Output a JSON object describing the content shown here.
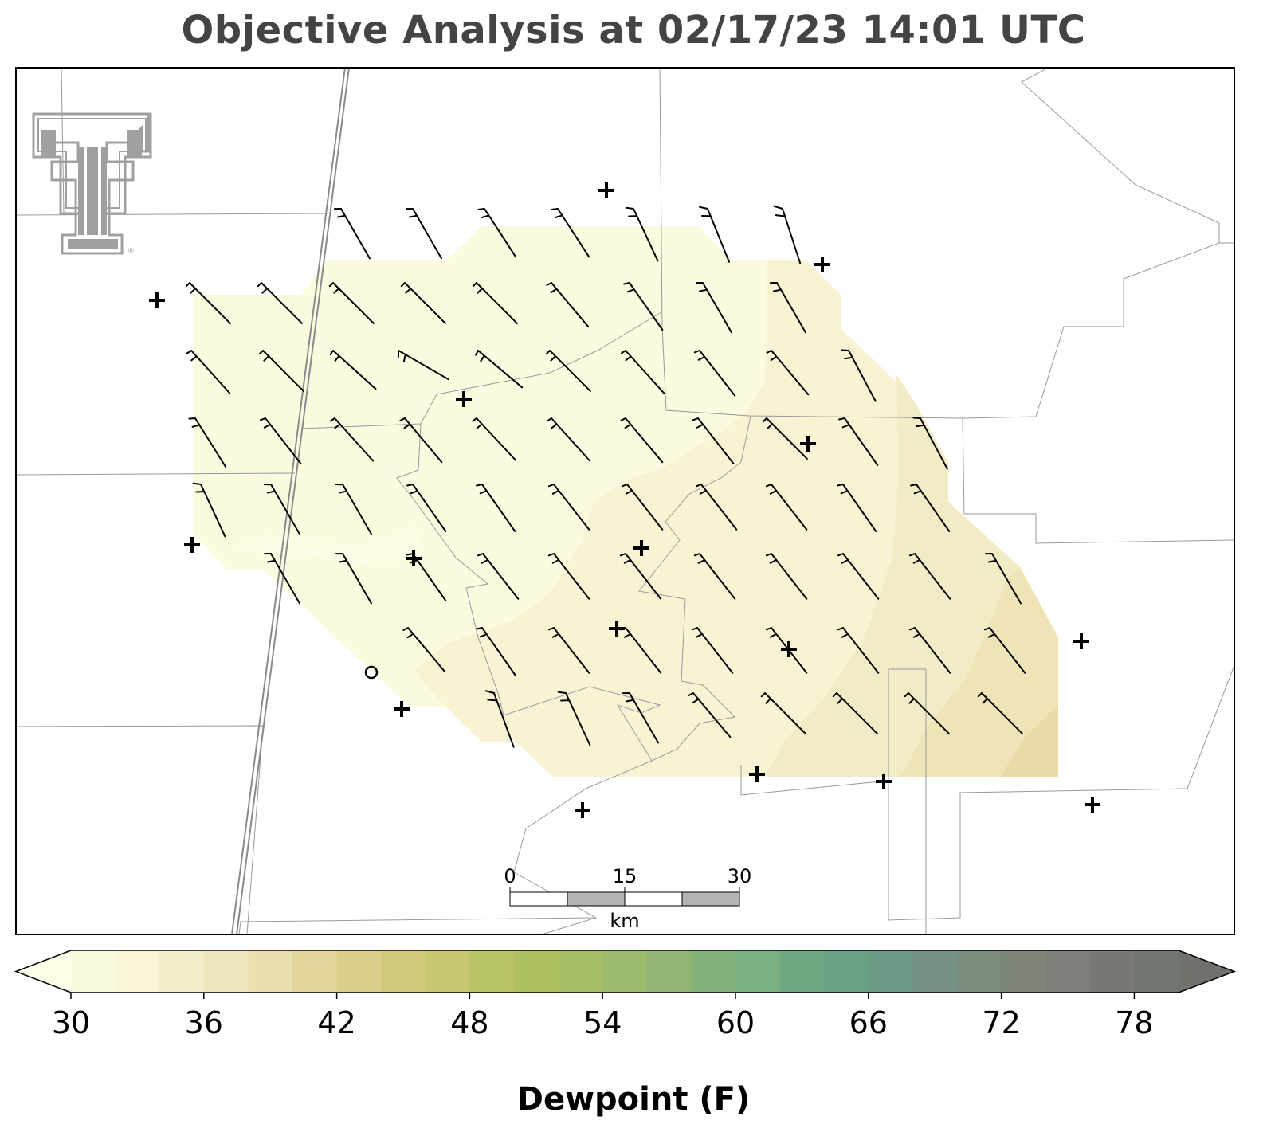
{
  "title": "Objective Analysis at 02/17/23 14:01 UTC",
  "logo": {
    "name": "texas-tech-double-t-logo",
    "color": "#a0a0a0",
    "mark": "®"
  },
  "colorbar": {
    "label": "Dewpoint (F)",
    "ticks": [
      "30",
      "36",
      "42",
      "48",
      "54",
      "60",
      "66",
      "72",
      "78"
    ],
    "tick_values": [
      30,
      36,
      42,
      48,
      54,
      60,
      66,
      72,
      78
    ],
    "min": 30,
    "max": 80,
    "step": 2,
    "extend": "both",
    "colors": [
      "#fcfbe0",
      "#f8f6d6",
      "#f3efcb",
      "#efe7bd",
      "#eadfae",
      "#e5d69d",
      "#dccf8c",
      "#d1cb7d",
      "#c7c771",
      "#bac266",
      "#aec161",
      "#a6bf65",
      "#9cbb6c",
      "#91b673",
      "#85b27a",
      "#7aaf80",
      "#6ea984",
      "#67a286",
      "#6c9a84",
      "#749181",
      "#7b8b7d",
      "#7e857a",
      "#7c7f77",
      "#777a72",
      "#717570"
    ],
    "under_color": "#fefde8",
    "over_color": "#6f736c"
  },
  "scale_bar": {
    "labels": [
      "0",
      "15",
      "30"
    ],
    "unit": "km"
  },
  "analysis": {
    "variable": "Dewpoint (F)",
    "filled_range": [
      30,
      40
    ]
  }
}
